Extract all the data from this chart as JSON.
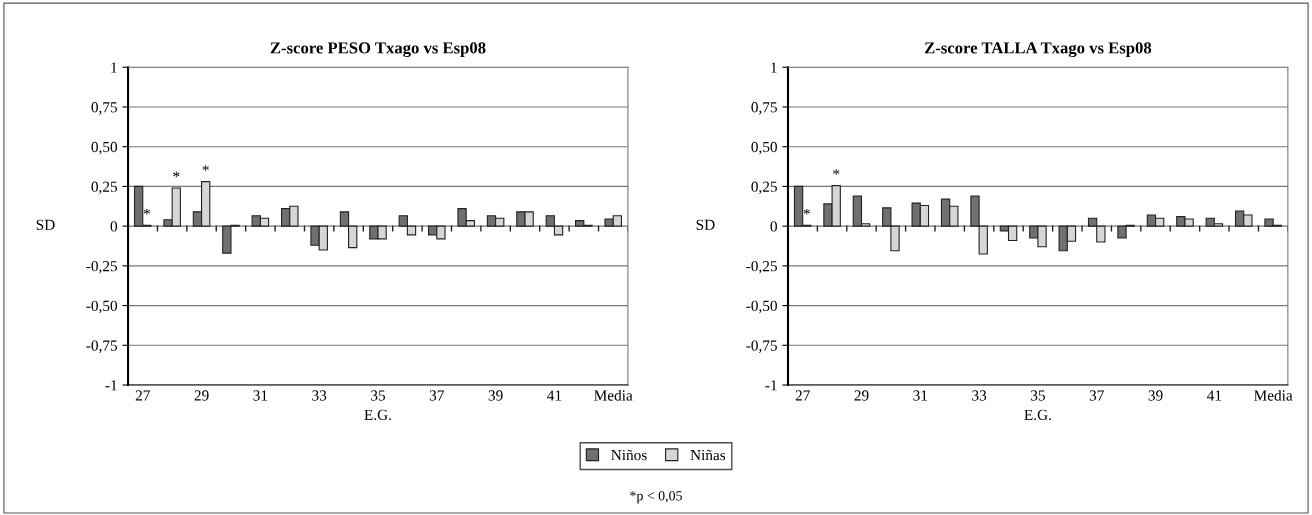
{
  "chart_data": [
    {
      "type": "bar",
      "title": "Z-score PESO Txago vs Esp08",
      "xlabel": "E.G.",
      "ylabel": "SD",
      "categories": [
        "27",
        null,
        "29",
        null,
        "31",
        null,
        "33",
        null,
        "35",
        null,
        "37",
        null,
        "39",
        null,
        "41",
        null,
        "Media"
      ],
      "series": [
        {
          "name": "Niños",
          "color": "#707070",
          "values": [
            0.25,
            0.04,
            0.09,
            -0.17,
            0.065,
            0.11,
            -0.12,
            0.09,
            -0.08,
            0.065,
            -0.055,
            0.11,
            0.065,
            0.09,
            0.065,
            0.035,
            0.045
          ]
        },
        {
          "name": "Niñas",
          "color": "#d6d6d6",
          "values": [
            0.005,
            0.24,
            0.28,
            0.005,
            0.05,
            0.125,
            -0.15,
            -0.135,
            -0.08,
            -0.055,
            -0.08,
            0.035,
            0.05,
            0.09,
            -0.055,
            0.005,
            0.065
          ],
          "value_labels": [
            "*",
            "*",
            "*",
            null,
            null,
            null,
            null,
            null,
            null,
            null,
            null,
            null,
            null,
            null,
            null,
            null,
            null
          ]
        }
      ],
      "ylim": [
        -1,
        1
      ],
      "yticks": [
        {
          "value": -1,
          "label": "-1"
        },
        {
          "value": -0.75,
          "label": "-0,75"
        },
        {
          "value": -0.5,
          "label": "-0,50"
        },
        {
          "value": -0.25,
          "label": "-0,25"
        },
        0,
        {
          "value": 0.25,
          "label": "0,25"
        },
        {
          "value": 0.5,
          "label": "0,50"
        },
        {
          "value": 0.75,
          "label": "0,75"
        },
        1
      ],
      "grid": "y",
      "legend": "bottom",
      "annotations": [
        "*p < 0,05"
      ]
    },
    {
      "type": "bar",
      "title": "Z-score TALLA Txago vs Esp08",
      "xlabel": "E.G.",
      "ylabel": "SD",
      "categories": [
        "27",
        null,
        "29",
        null,
        "31",
        null,
        "33",
        null,
        "35",
        null,
        "37",
        null,
        "39",
        null,
        "41",
        null,
        "Media"
      ],
      "series": [
        {
          "color": "#707070",
          "values": [
            0.25,
            0.14,
            0.19,
            0.115,
            0.145,
            0.17,
            0.19,
            -0.03,
            -0.075,
            -0.155,
            0.05,
            -0.075,
            0.07,
            0.06,
            0.05,
            0.095,
            0.045
          ]
        },
        {
          "color": "#d6d6d6",
          "values": [
            0.005,
            0.255,
            0.015,
            -0.155,
            0.13,
            0.125,
            -0.175,
            -0.09,
            -0.13,
            -0.095,
            -0.1,
            0.005,
            0.05,
            0.045,
            0.015,
            0.07,
            0.005
          ],
          "value_labels": [
            "*",
            "*",
            null,
            null,
            null,
            null,
            null,
            null,
            null,
            null,
            null,
            null,
            null,
            null,
            null,
            null,
            null
          ]
        }
      ],
      "ylim": [
        -1,
        1
      ],
      "yticks": [
        {
          "value": -1,
          "label": "-1"
        },
        {
          "value": -0.75,
          "label": "-0,75"
        },
        {
          "value": -0.5,
          "label": "-0,50"
        },
        {
          "value": -0.25,
          "label": "-0,25"
        },
        0,
        {
          "value": 0.25,
          "label": "0,25"
        },
        {
          "value": 0.5,
          "label": "0,50"
        },
        {
          "value": 0.75,
          "label": "0,75"
        },
        1
      ],
      "grid": "y"
    }
  ]
}
